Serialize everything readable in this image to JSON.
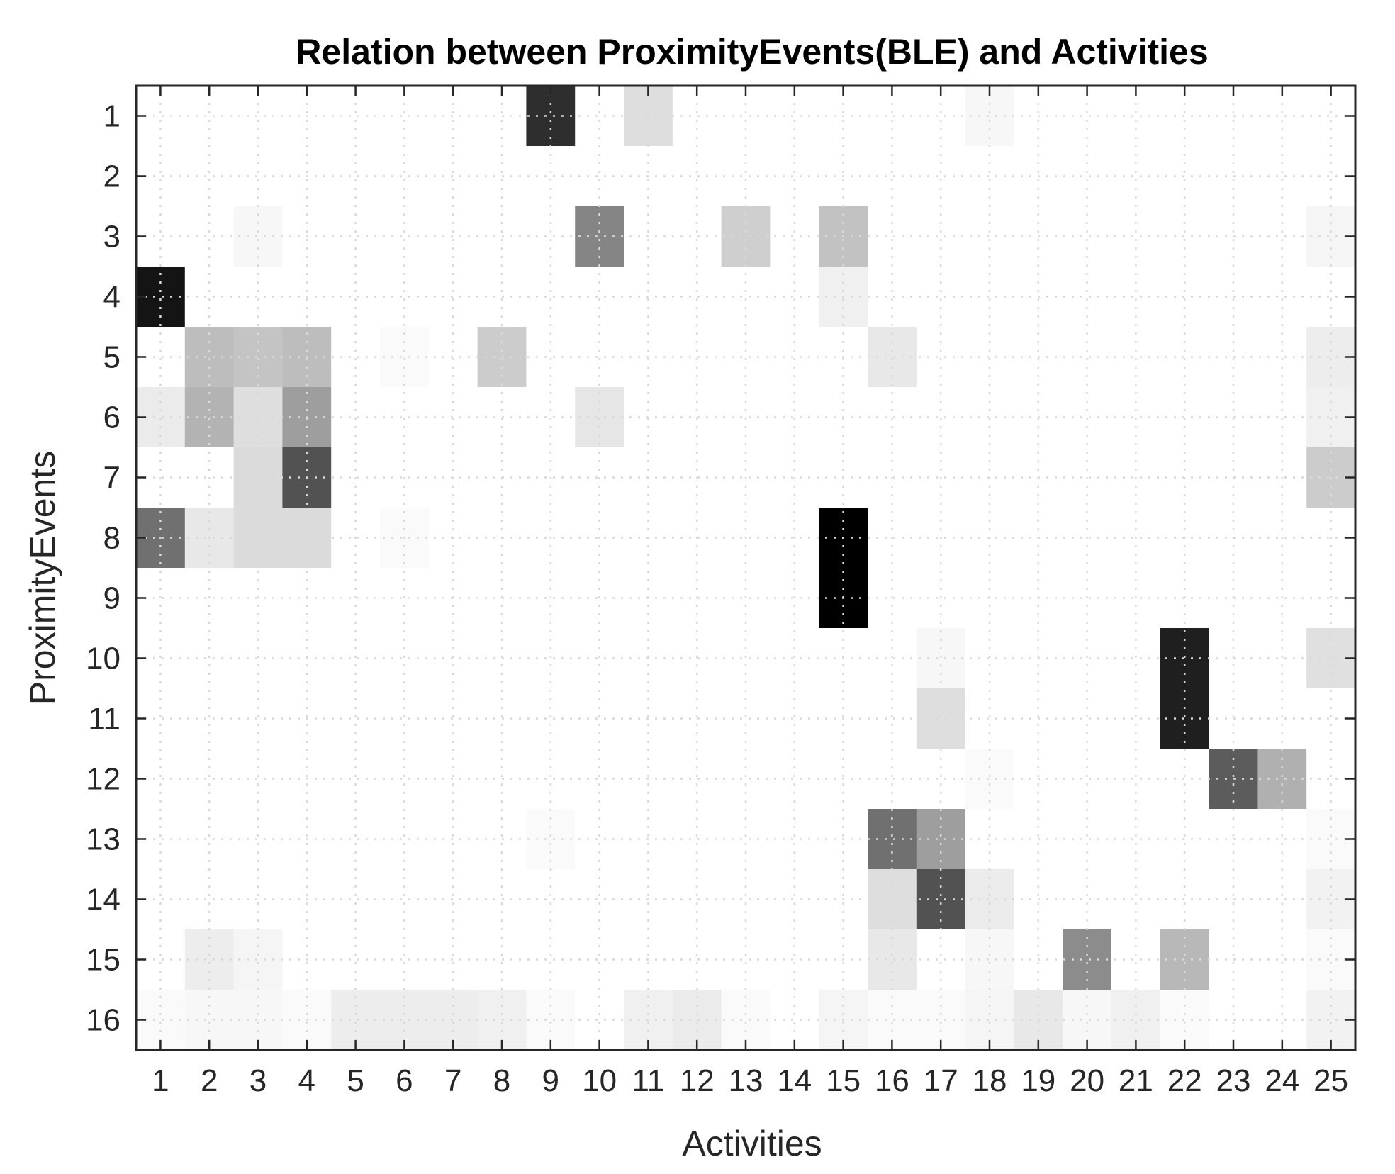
{
  "chart_data": {
    "type": "heatmap",
    "title": "Relation between ProximityEvents(BLE) and Activities",
    "xlabel": "Activities",
    "ylabel": "ProximityEvents",
    "x_categories": [
      "1",
      "2",
      "3",
      "4",
      "5",
      "6",
      "7",
      "8",
      "9",
      "10",
      "11",
      "12",
      "13",
      "14",
      "15",
      "16",
      "17",
      "18",
      "19",
      "20",
      "21",
      "22",
      "23",
      "24",
      "25"
    ],
    "y_categories": [
      "1",
      "2",
      "3",
      "4",
      "5",
      "6",
      "7",
      "8",
      "9",
      "10",
      "11",
      "12",
      "13",
      "14",
      "15",
      "16"
    ],
    "value_range": [
      0,
      1
    ],
    "colormap": "white-to-black (gray, 0 = white, 1 = black)",
    "grid": true,
    "values": [
      [
        0,
        0,
        0,
        0,
        0,
        0,
        0,
        0,
        0.82,
        0,
        0.13,
        0,
        0,
        0,
        0,
        0,
        0,
        0.03,
        0,
        0,
        0,
        0,
        0,
        0,
        0
      ],
      [
        0,
        0,
        0,
        0,
        0,
        0,
        0,
        0,
        0,
        0,
        0,
        0,
        0,
        0,
        0,
        0,
        0,
        0,
        0,
        0,
        0,
        0,
        0,
        0,
        0
      ],
      [
        0,
        0,
        0.03,
        0,
        0,
        0,
        0,
        0,
        0,
        0.48,
        0,
        0,
        0.19,
        0,
        0.24,
        0,
        0,
        0,
        0,
        0,
        0,
        0,
        0,
        0,
        0.04
      ],
      [
        0.92,
        0,
        0,
        0,
        0,
        0,
        0,
        0,
        0,
        0,
        0,
        0,
        0,
        0,
        0.06,
        0,
        0,
        0,
        0,
        0,
        0,
        0,
        0,
        0,
        0
      ],
      [
        0,
        0.26,
        0.23,
        0.26,
        0,
        0.02,
        0,
        0.2,
        0,
        0,
        0,
        0,
        0,
        0,
        0,
        0.09,
        0,
        0,
        0,
        0,
        0,
        0,
        0,
        0,
        0.07
      ],
      [
        0.08,
        0.3,
        0.13,
        0.38,
        0,
        0,
        0,
        0,
        0,
        0.1,
        0,
        0,
        0,
        0,
        0,
        0,
        0,
        0,
        0,
        0,
        0,
        0,
        0,
        0,
        0.06
      ],
      [
        0,
        0,
        0.14,
        0.68,
        0,
        0,
        0,
        0,
        0,
        0,
        0,
        0,
        0,
        0,
        0,
        0,
        0,
        0,
        0,
        0,
        0,
        0,
        0,
        0,
        0.2
      ],
      [
        0.56,
        0.09,
        0.14,
        0.14,
        0,
        0.02,
        0,
        0,
        0,
        0,
        0,
        0,
        0,
        0,
        1.0,
        0,
        0,
        0,
        0,
        0,
        0,
        0,
        0,
        0,
        0
      ],
      [
        0,
        0,
        0,
        0,
        0,
        0,
        0,
        0,
        0,
        0,
        0,
        0,
        0,
        0,
        1.0,
        0,
        0,
        0,
        0,
        0,
        0,
        0,
        0,
        0,
        0
      ],
      [
        0,
        0,
        0,
        0,
        0,
        0,
        0,
        0,
        0,
        0,
        0,
        0,
        0,
        0,
        0,
        0,
        0.03,
        0,
        0,
        0,
        0,
        0.88,
        0,
        0,
        0.12
      ],
      [
        0,
        0,
        0,
        0,
        0,
        0,
        0,
        0,
        0,
        0,
        0,
        0,
        0,
        0,
        0,
        0,
        0.13,
        0,
        0,
        0,
        0,
        0.88,
        0,
        0,
        0
      ],
      [
        0,
        0,
        0,
        0,
        0,
        0,
        0,
        0,
        0,
        0,
        0,
        0,
        0,
        0,
        0,
        0,
        0,
        0.02,
        0,
        0,
        0,
        0,
        0.64,
        0.31,
        0
      ],
      [
        0,
        0,
        0,
        0,
        0,
        0,
        0,
        0,
        0.02,
        0,
        0,
        0,
        0,
        0,
        0,
        0.56,
        0.38,
        0,
        0,
        0,
        0,
        0,
        0,
        0,
        0.02
      ],
      [
        0,
        0,
        0,
        0,
        0,
        0,
        0,
        0,
        0,
        0,
        0,
        0,
        0,
        0,
        0,
        0.13,
        0.68,
        0.08,
        0,
        0,
        0,
        0,
        0,
        0,
        0.05
      ],
      [
        0,
        0.07,
        0.04,
        0,
        0,
        0,
        0,
        0,
        0,
        0,
        0,
        0,
        0,
        0,
        0,
        0.09,
        0,
        0.03,
        0,
        0.45,
        0,
        0.28,
        0,
        0,
        0.02
      ],
      [
        0.02,
        0.03,
        0.03,
        0.02,
        0.07,
        0.07,
        0.07,
        0.06,
        0.02,
        0,
        0.06,
        0.08,
        0.02,
        0,
        0.04,
        0.02,
        0.02,
        0.04,
        0.09,
        0.03,
        0.06,
        0.02,
        0,
        0,
        0.05
      ]
    ]
  }
}
